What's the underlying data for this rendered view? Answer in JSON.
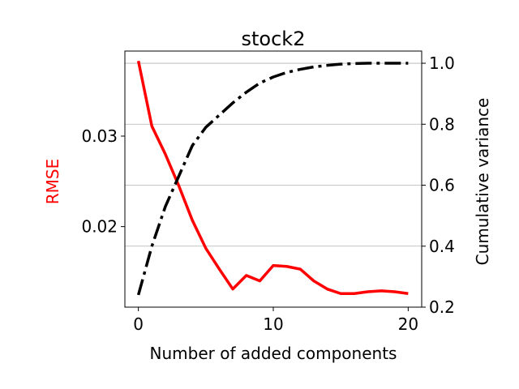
{
  "chart_data": {
    "type": "line",
    "title": "stock2",
    "xlabel": "Number of added components",
    "ylabel_left": "RMSE",
    "ylabel_right": "Cumulative variance",
    "xlim": [
      -1,
      21
    ],
    "ylim_left": [
      0.0111,
      0.0394
    ],
    "ylim_right": [
      0.2,
      1.04
    ],
    "xticks": [
      0,
      10,
      20
    ],
    "yticks_left": [
      0.02,
      0.03
    ],
    "yticks_left_labels": [
      "0.02",
      "0.03"
    ],
    "yticks_right": [
      0.2,
      0.4,
      0.6,
      0.8,
      1.0
    ],
    "yticks_right_labels": [
      "0.2",
      "0.4",
      "0.6",
      "0.8",
      "1.0"
    ],
    "grid": "horizontal lines at right-axis ticks",
    "series": [
      {
        "name": "RMSE",
        "axis": "left",
        "color": "#ff0000",
        "style": "solid",
        "x": [
          0,
          1,
          2,
          3,
          4,
          5,
          6,
          7,
          8,
          9,
          10,
          11,
          12,
          13,
          14,
          15,
          16,
          17,
          18,
          19,
          20
        ],
        "values": [
          0.0383,
          0.0311,
          0.028,
          0.0245,
          0.0207,
          0.0176,
          0.0153,
          0.0131,
          0.0146,
          0.014,
          0.0157,
          0.0156,
          0.0153,
          0.014,
          0.0131,
          0.0126,
          0.0126,
          0.0128,
          0.0129,
          0.0128,
          0.0126
        ]
      },
      {
        "name": "Cumulative variance",
        "axis": "right",
        "color": "#000000",
        "style": "dashdot",
        "x": [
          0,
          1,
          2,
          3,
          4,
          5,
          6,
          7,
          8,
          9,
          10,
          11,
          12,
          13,
          14,
          15,
          16,
          17,
          18,
          19,
          20
        ],
        "values": [
          0.24,
          0.4,
          0.53,
          0.63,
          0.73,
          0.79,
          0.83,
          0.87,
          0.905,
          0.935,
          0.955,
          0.97,
          0.98,
          0.988,
          0.993,
          0.997,
          0.999,
          1.0,
          1.0,
          1.0,
          1.0
        ]
      }
    ]
  }
}
